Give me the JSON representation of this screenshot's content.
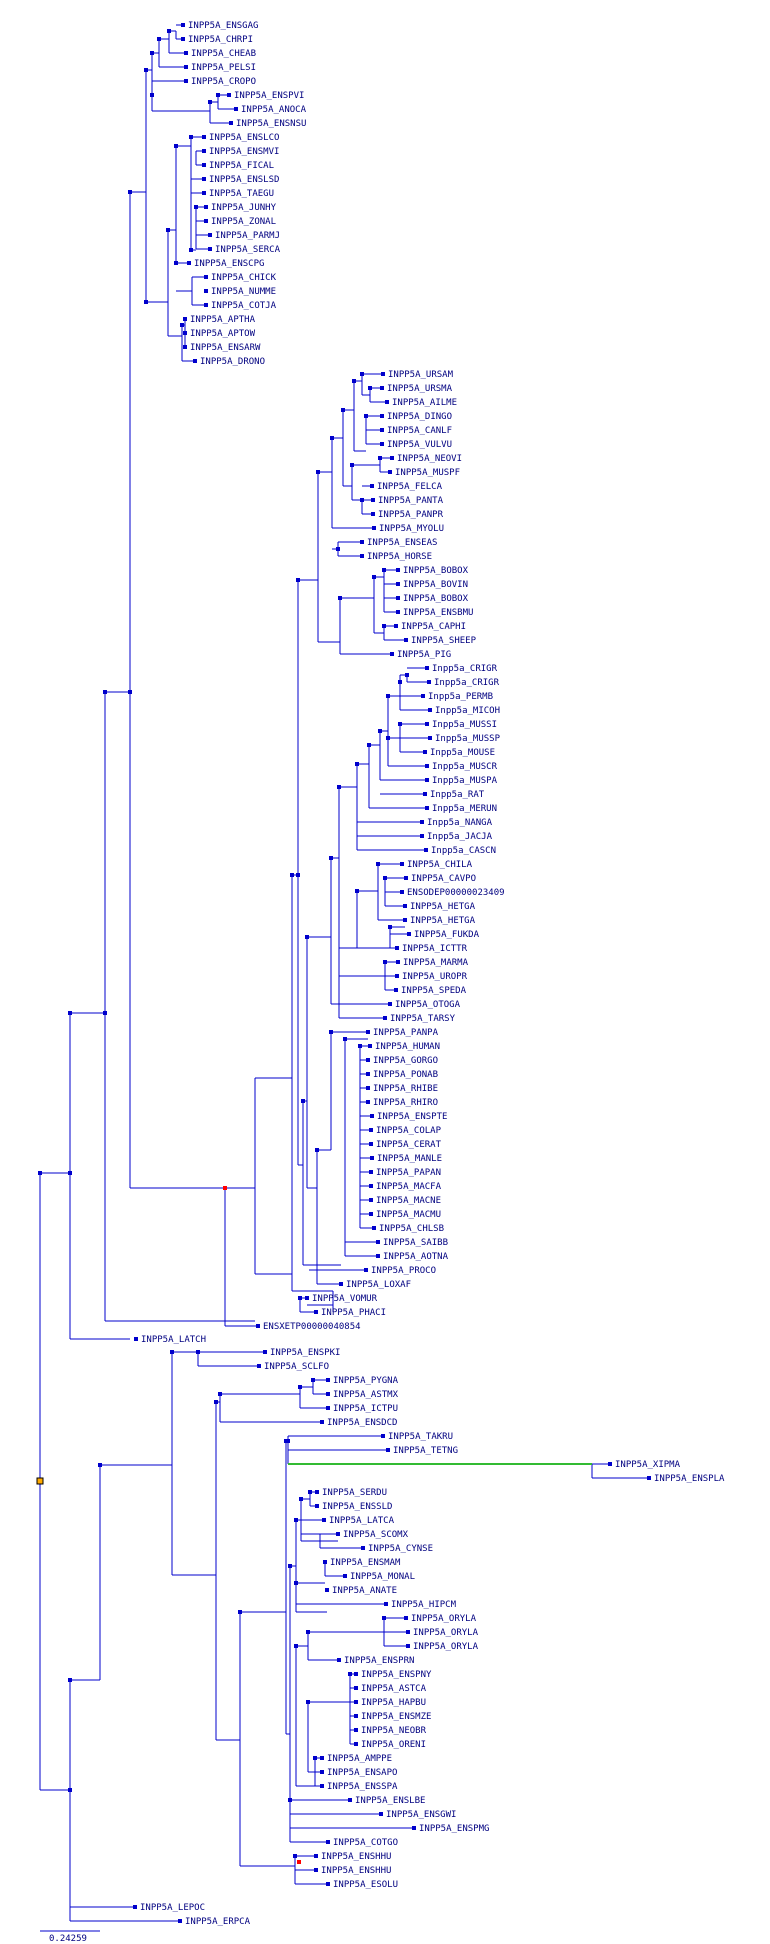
{
  "scale_bar_label": "0.24259",
  "colors": {
    "branch": "#0000cc",
    "highlight_branch": "#33bb33",
    "duplication_node": "#ff0000",
    "root_node": "#ffaa00",
    "label": "#000080"
  },
  "leaves": [
    "INPP5A_ENSGAG",
    "INPP5A_CHRPI",
    "INPP5A_CHEAB",
    "INPP5A_PELSI",
    "INPP5A_CROPO",
    "INPP5A_ENSPVI",
    "INPP5A_ANOCA",
    "INPP5A_ENSNSU",
    "INPP5A_ENSLCO",
    "INPP5A_ENSMVI",
    "INPP5A_FICAL",
    "INPP5A_ENSLSD",
    "INPP5A_TAEGU",
    "INPP5A_JUNHY",
    "INPP5A_ZONAL",
    "INPP5A_PARMJ",
    "INPP5A_SERCA",
    "INPP5A_ENSCPG",
    "INPP5A_CHICK",
    "INPP5A_NUMME",
    "INPP5A_COTJA",
    "INPP5A_APTHA",
    "INPP5A_APTOW",
    "INPP5A_ENSARW",
    "INPP5A_DRONO",
    "INPP5A_URSAM",
    "INPP5A_URSMA",
    "INPP5A_AILME",
    "INPP5A_DINGO",
    "INPP5A_CANLF",
    "INPP5A_VULVU",
    "INPP5A_NEOVI",
    "INPP5A_MUSPF",
    "INPP5A_FELCA",
    "INPP5A_PANTA",
    "INPP5A_PANPR",
    "INPP5A_MYOLU",
    "INPP5A_ENSEAS",
    "INPP5A_HORSE",
    "INPP5A_BOBOX",
    "INPP5A_BOVIN",
    "INPP5A_BOBOX",
    "INPP5A_ENSBMU",
    "INPP5A_CAPHI",
    "INPP5A_SHEEP",
    "INPP5A_PIG",
    "Inpp5a_CRIGR",
    "Inpp5a_CRIGR",
    "Inpp5a_PERMB",
    "Inpp5a_MICOH",
    "Inpp5a_MUSSI",
    "Inpp5a_MUSSP",
    "Inpp5a_MOUSE",
    "Inpp5a_MUSCR",
    "Inpp5a_MUSPA",
    "Inpp5a_RAT",
    "Inpp5a_MERUN",
    "Inpp5a_NANGA",
    "Inpp5a_JACJA",
    "Inpp5a_CASCN",
    "INPP5A_CHILA",
    "INPP5A_CAVPO",
    "ENSODEP00000023409",
    "INPP5A_HETGA",
    "INPP5A_HETGA",
    "INPP5A_FUKDA",
    "INPP5A_ICTTR",
    "INPP5A_MARMA",
    "INPP5A_UROPR",
    "INPP5A_SPEDA",
    "INPP5A_OTOGA",
    "INPP5A_TARSY",
    "INPP5A_PANPA",
    "INPP5A_HUMAN",
    "INPP5A_GORGO",
    "INPP5A_PONAB",
    "INPP5A_RHIBE",
    "INPP5A_RHIRO",
    "INPP5A_ENSPTE",
    "INPP5A_COLAP",
    "INPP5A_CERAT",
    "INPP5A_MANLE",
    "INPP5A_PAPAN",
    "INPP5A_MACFA",
    "INPP5A_MACNE",
    "INPP5A_MACMU",
    "INPP5A_CHLSB",
    "INPP5A_SAIBB",
    "INPP5A_AOTNA",
    "INPP5A_PROCO",
    "INPP5A_LOXAF",
    "INPP5A_VOMUR",
    "INPP5A_PHACI",
    "ENSXETP00000040854",
    "INPP5A_LATCH",
    "INPP5A_ENSPKI",
    "INPP5A_SCLFO",
    "INPP5A_PYGNA",
    "INPP5A_ASTMX",
    "INPP5A_ICTPU",
    "INPP5A_ENSDCD",
    "INPP5A_TAKRU",
    "INPP5A_TETNG",
    "INPP5A_XIPMA",
    "INPP5A_ENSPLA",
    "INPP5A_SERDU",
    "INPP5A_ENSSLD",
    "INPP5A_LATCA",
    "INPP5A_SCOMX",
    "INPP5A_CYNSE",
    "INPP5A_ENSMAM",
    "INPP5A_MONAL",
    "INPP5A_ANATE",
    "INPP5A_HIPCM",
    "INPP5A_ORYLA",
    "INPP5A_ORYLA",
    "INPP5A_ORYLA",
    "INPP5A_ENSPRN",
    "INPP5A_ENSPNY",
    "INPP5A_ASTCA",
    "INPP5A_HAPBU",
    "INPP5A_ENSMZE",
    "INPP5A_NEOBR",
    "INPP5A_ORENI",
    "INPP5A_AMPPE",
    "INPP5A_ENSAPO",
    "INPP5A_ENSSPA",
    "INPP5A_ENSLBE",
    "INPP5A_ENSGWI",
    "INPP5A_ENSPMG",
    "INPP5A_COTGO",
    "INPP5A_ENSHHU",
    "INPP5A_ENSHHU",
    "INPP5A_ESOLU",
    "INPP5A_LEPOC",
    "INPP5A_ERPCA"
  ]
}
